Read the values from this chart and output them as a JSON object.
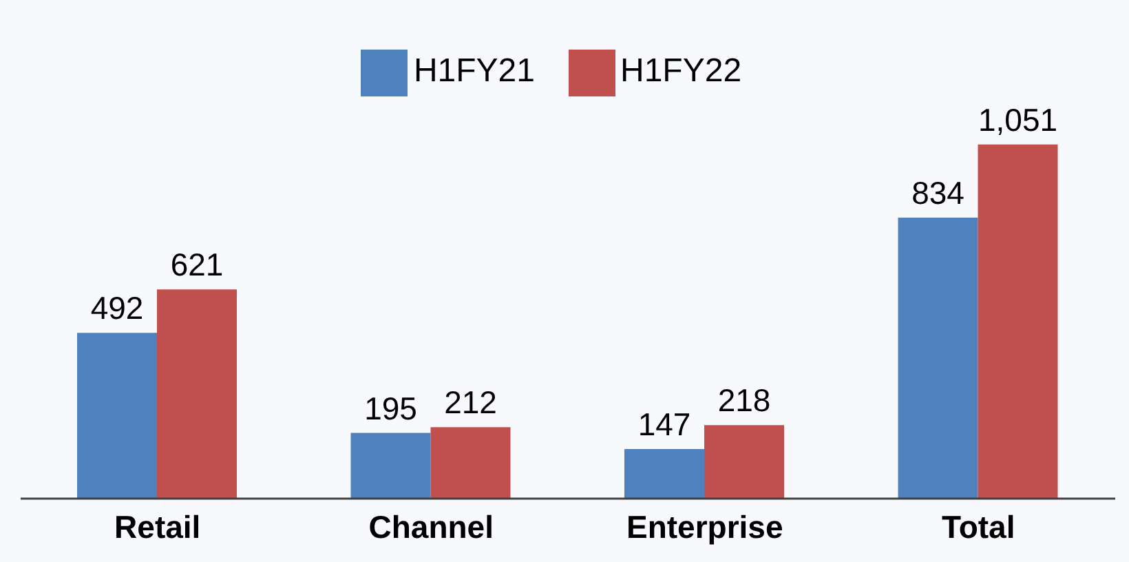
{
  "chart_data": {
    "type": "bar",
    "categories": [
      "Retail",
      "Channel",
      "Enterprise",
      "Total"
    ],
    "series": [
      {
        "name": "H1FY21",
        "color": "#4f81bd",
        "values": [
          492,
          195,
          147,
          834
        ],
        "value_labels": [
          "492",
          "195",
          "147",
          "834"
        ]
      },
      {
        "name": "H1FY22",
        "color": "#c0504d",
        "values": [
          621,
          212,
          218,
          1051
        ],
        "value_labels": [
          "621",
          "212",
          "218",
          "1,051"
        ]
      }
    ],
    "legend": "top",
    "grid": false
  }
}
